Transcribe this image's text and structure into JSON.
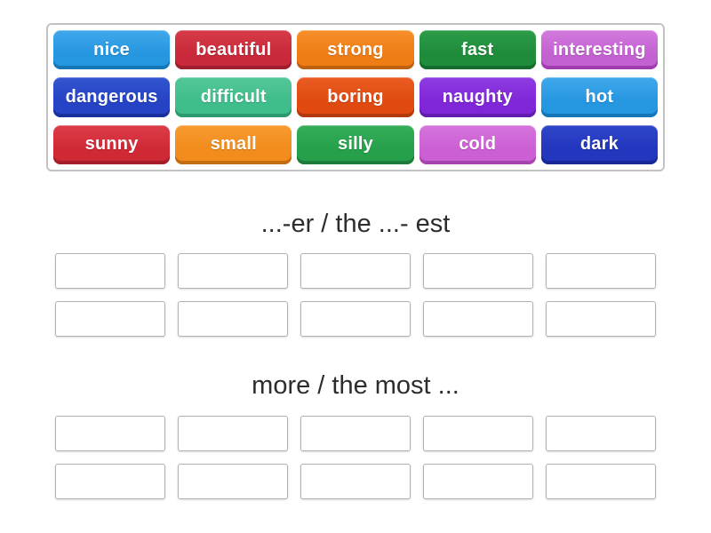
{
  "word_tray": {
    "tiles": [
      {
        "label": "nice",
        "color": "#2596e0",
        "color_light": "#41a8ec",
        "color_dark": "#1576b8"
      },
      {
        "label": "beautiful",
        "color": "#c9293a",
        "color_light": "#d63c47",
        "color_dark": "#9e1f2d"
      },
      {
        "label": "strong",
        "color": "#ef7d16",
        "color_light": "#f68f2b",
        "color_dark": "#c06110"
      },
      {
        "label": "fast",
        "color": "#1f8c3b",
        "color_light": "#2c9c49",
        "color_dark": "#146b2c"
      },
      {
        "label": "interesting",
        "color": "#c461d2",
        "color_light": "#d27ade",
        "color_dark": "#a03bb0"
      },
      {
        "label": "dangerous",
        "color": "#2543c4",
        "color_light": "#3355d0",
        "color_dark": "#19309c"
      },
      {
        "label": "difficult",
        "color": "#3fbd8a",
        "color_light": "#54c799",
        "color_dark": "#2d9a6e"
      },
      {
        "label": "boring",
        "color": "#e04a11",
        "color_light": "#ea5c22",
        "color_dark": "#b2390c"
      },
      {
        "label": "naughty",
        "color": "#7f27d8",
        "color_light": "#8f3ce2",
        "color_dark": "#611bae"
      },
      {
        "label": "hot",
        "color": "#2596e0",
        "color_light": "#41a8ec",
        "color_dark": "#1576b8"
      },
      {
        "label": "sunny",
        "color": "#d02936",
        "color_light": "#dc3d49",
        "color_dark": "#a51f2a"
      },
      {
        "label": "small",
        "color": "#f28c1d",
        "color_light": "#f79b30",
        "color_dark": "#c46c12"
      },
      {
        "label": "silly",
        "color": "#27a04b",
        "color_light": "#35ae59",
        "color_dark": "#1b7d39"
      },
      {
        "label": "cold",
        "color": "#cb5fd3",
        "color_light": "#d674dc",
        "color_dark": "#a645b0"
      },
      {
        "label": "dark",
        "color": "#2337be",
        "color_light": "#3046ca",
        "color_dark": "#172795"
      }
    ]
  },
  "groups": [
    {
      "title": "...-er / the ...- est"
    },
    {
      "title": "more / the most ..."
    }
  ],
  "slots": {
    "per_row": 5,
    "rows_per_group": 2
  }
}
